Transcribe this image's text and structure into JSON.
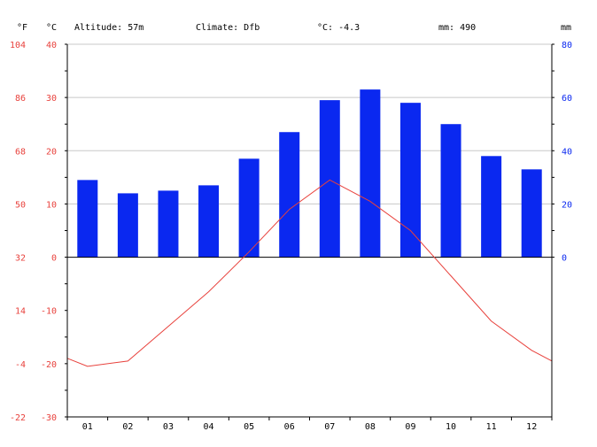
{
  "header": {
    "unit_f": "°F",
    "unit_c": "°C",
    "unit_mm": "mm",
    "altitude": "Altitude: 57m",
    "climate": "Climate: Dfb",
    "avg_temp": "°C: -4.3",
    "precip": "mm: 490"
  },
  "colors": {
    "temperature": "#e8413c",
    "precipitation": "#0a28f0",
    "grid": "#c8c8c8",
    "axis": "#000000",
    "text": "#000000"
  },
  "chart_data": {
    "type": "bar+line",
    "categories": [
      "01",
      "02",
      "03",
      "04",
      "05",
      "06",
      "07",
      "08",
      "09",
      "10",
      "11",
      "12"
    ],
    "series": [
      {
        "type": "bar",
        "axis": "mm",
        "values": [
          29,
          24,
          25,
          27,
          37,
          47,
          59,
          63,
          58,
          50,
          38,
          33
        ]
      },
      {
        "type": "line",
        "axis": "°C",
        "values": [
          -20.5,
          -19.5,
          -13,
          -6.5,
          1,
          9,
          14.5,
          10.5,
          5,
          -3.5,
          -12,
          -17.5
        ],
        "edge_values": [
          -19,
          -19.5
        ]
      }
    ],
    "y_left_c": {
      "min": -30,
      "max": 40,
      "ticks": [
        -30,
        -20,
        -10,
        0,
        10,
        20,
        30,
        40
      ]
    },
    "y_left_f": {
      "ticks": [
        -22,
        -4,
        14,
        32,
        50,
        68,
        86,
        104
      ]
    },
    "y_right_mm": {
      "min": 0,
      "max": 80,
      "ticks": [
        0,
        20,
        40,
        60,
        80
      ]
    },
    "grid": true
  }
}
